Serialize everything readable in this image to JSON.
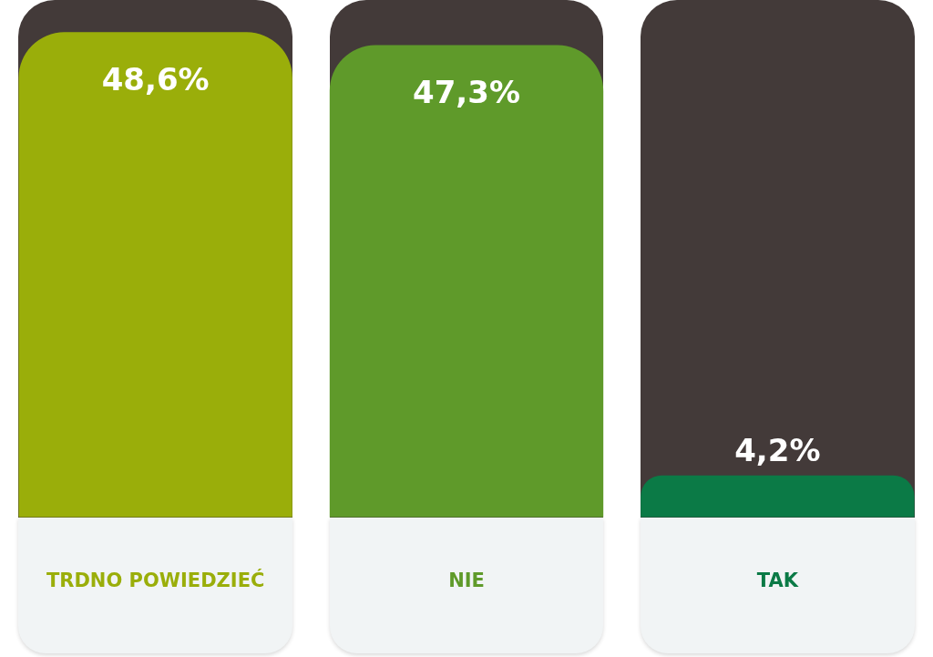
{
  "chart_data": {
    "type": "bar",
    "categories": [
      "TRDNO POWIEDZIEĆ",
      "NIE",
      "TAK"
    ],
    "values": [
      48.6,
      47.3,
      4.2
    ],
    "colors": [
      "#9aae0a",
      "#5f9a2a",
      "#0b7a46"
    ],
    "value_labels": [
      "48,6%",
      "47,3%",
      "4,2%"
    ],
    "grid": false,
    "legend": false
  }
}
